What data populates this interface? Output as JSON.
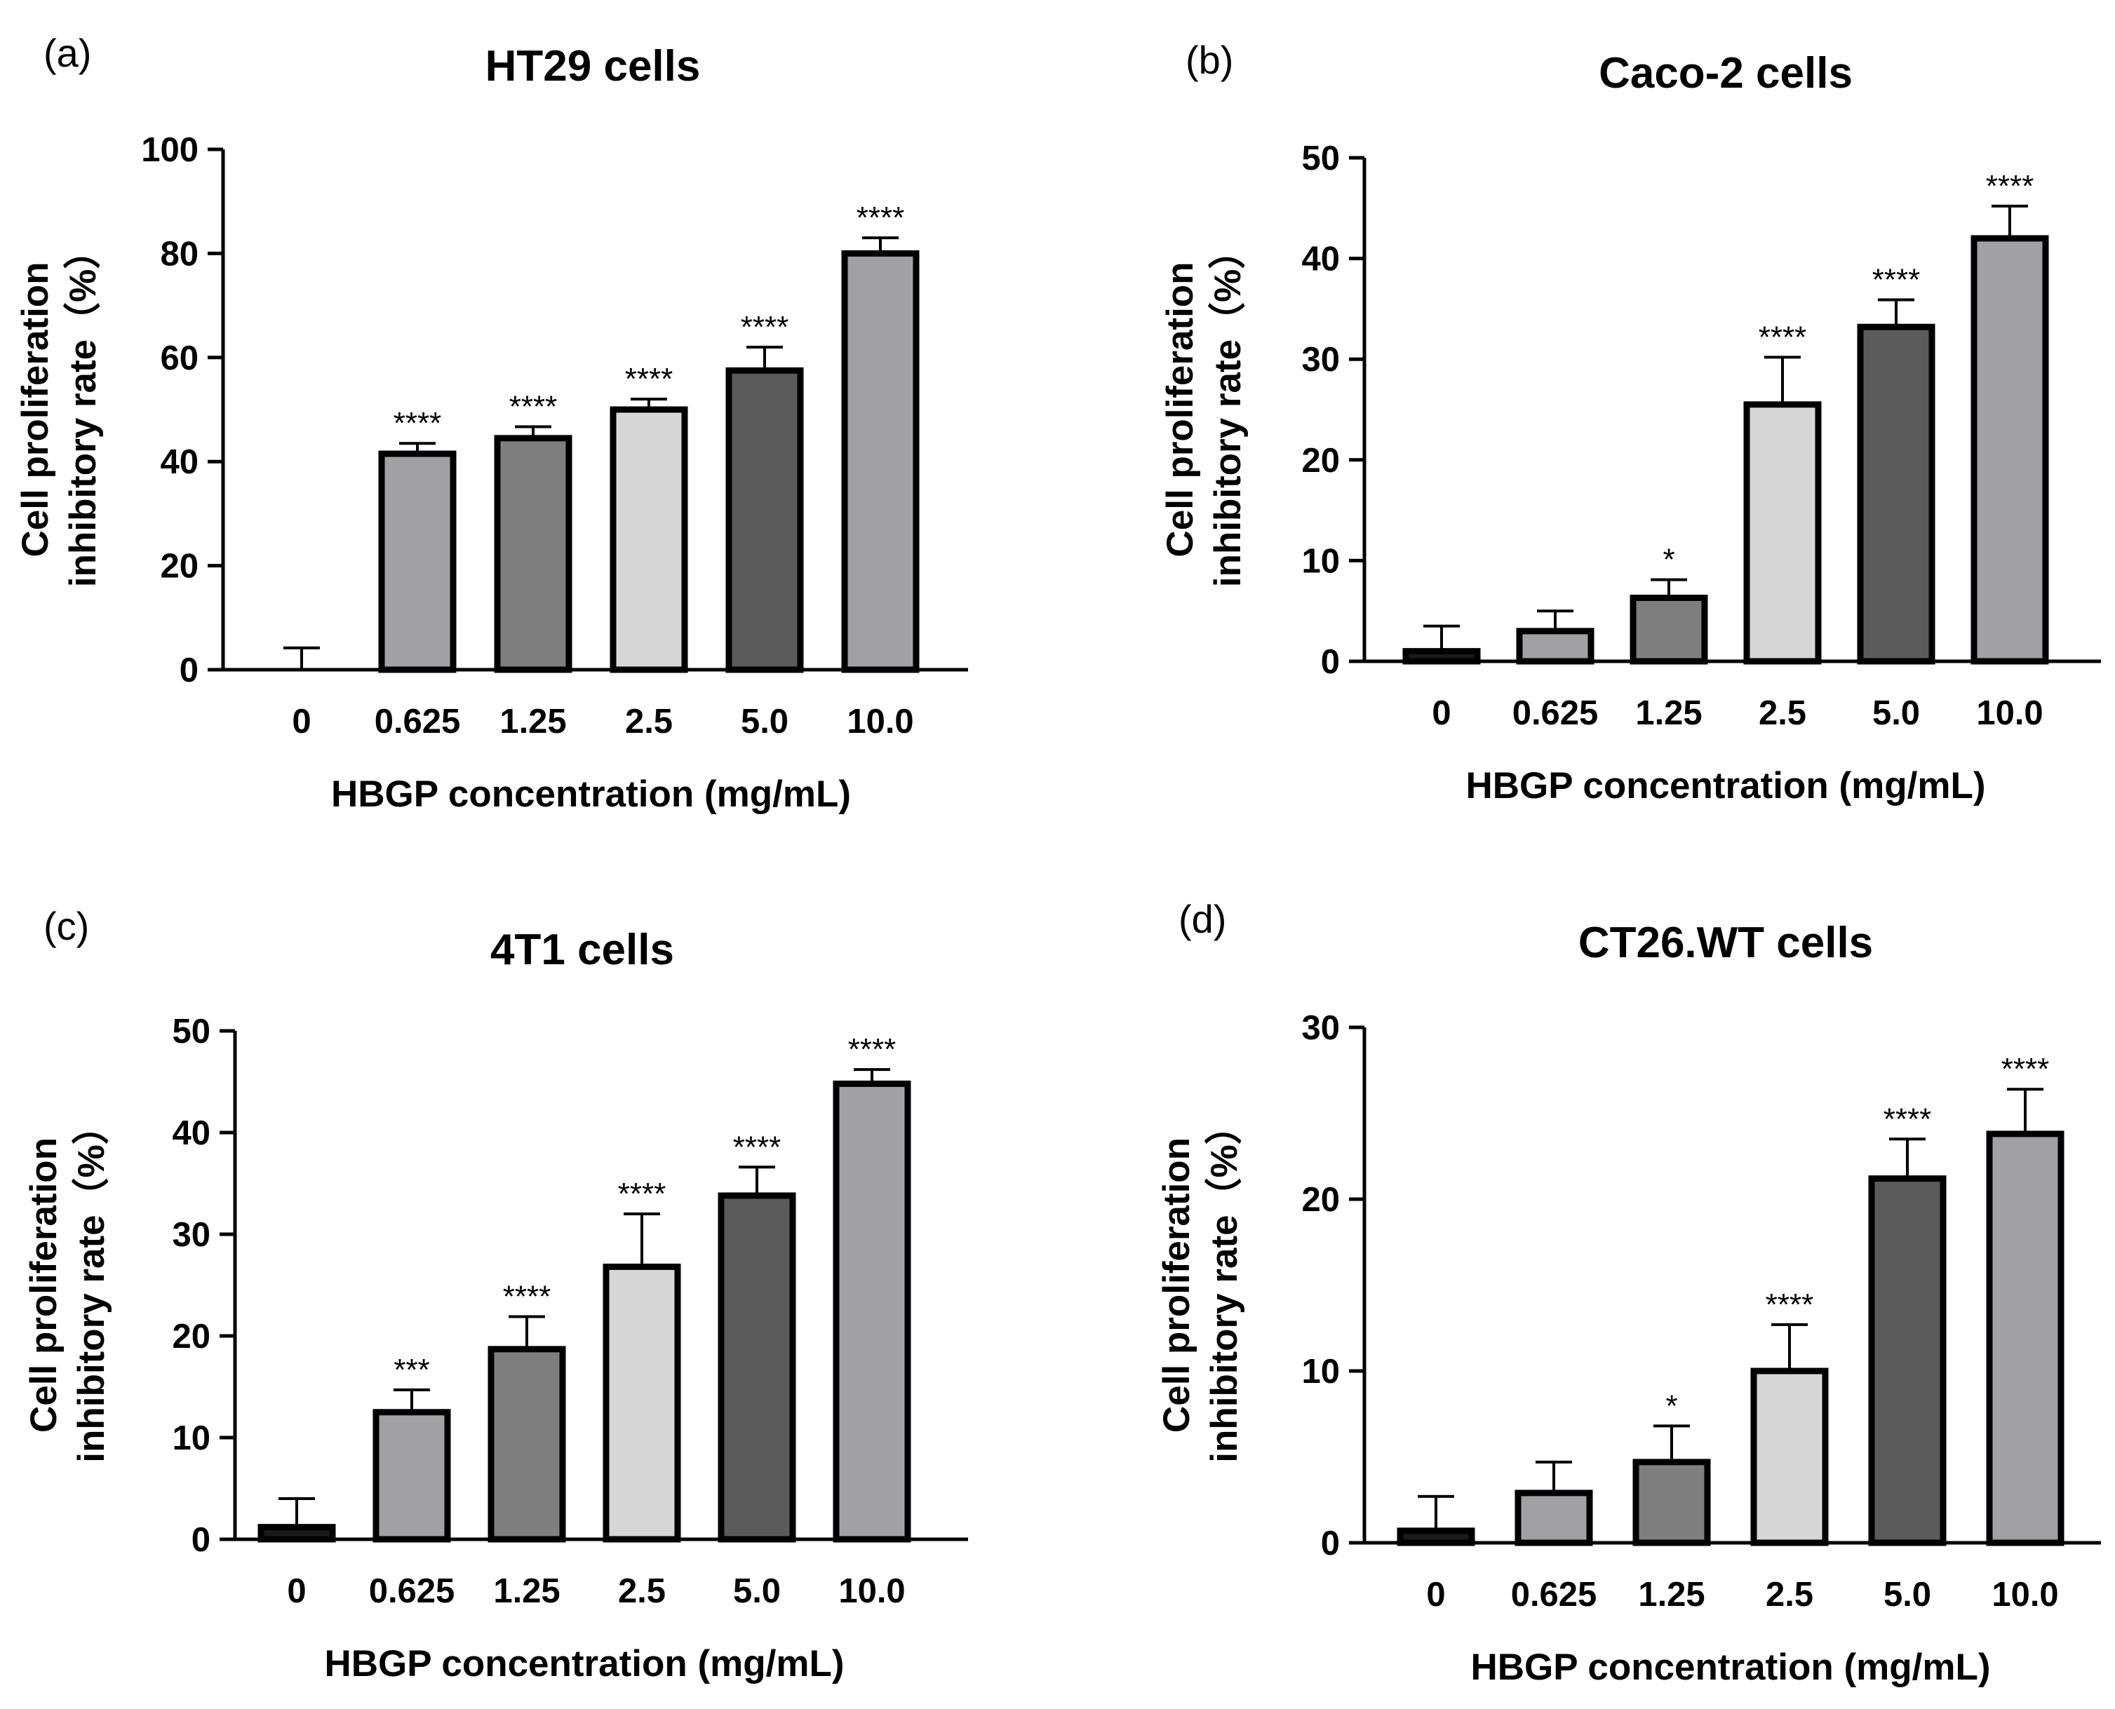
{
  "colors": {
    "bar_fill": "#a0a0a5",
    "bar_stroke": "#000000",
    "palette": [
      "#1a1a1a",
      "#a0a0a5",
      "#7f7f7f",
      "#d6d6d6",
      "#5b5b5b",
      "#a0a0a5"
    ]
  },
  "chart_data": [
    {
      "type": "bar",
      "panel": "(a)",
      "title": "HT29 cells",
      "xlabel": "HBGP concentration (mg/mL)",
      "ylabel": [
        "Cell proliferation",
        "inhibitory rate（%）"
      ],
      "categories": [
        "0",
        "0.625",
        "1.25",
        "2.5",
        "5.0",
        "10.0"
      ],
      "values": [
        0,
        41.5,
        44.5,
        50,
        57.5,
        80
      ],
      "errors": [
        4.2,
        2,
        2.2,
        2,
        4.5,
        3
      ],
      "significance": [
        "",
        "****",
        "****",
        "****",
        "****",
        "****"
      ],
      "ylim": [
        0,
        100
      ],
      "yticks": [
        0,
        20,
        40,
        60,
        80,
        100
      ],
      "grid": false,
      "legend": "none"
    },
    {
      "type": "bar",
      "panel": "(b)",
      "title": "Caco-2 cells",
      "xlabel": "HBGP concentration (mg/mL)",
      "ylabel": [
        "Cell proliferation",
        "inhibitory rate（%）"
      ],
      "categories": [
        "0",
        "0.625",
        "1.25",
        "2.5",
        "5.0",
        "10.0"
      ],
      "values": [
        1,
        3,
        6.3,
        25.5,
        33.2,
        42
      ],
      "errors": [
        2.5,
        2,
        1.8,
        4.7,
        2.7,
        3.2
      ],
      "significance": [
        "",
        "",
        "*",
        "****",
        "****",
        "****"
      ],
      "ylim": [
        0,
        50
      ],
      "yticks": [
        0,
        10,
        20,
        30,
        40,
        50
      ],
      "grid": false,
      "legend": "none"
    },
    {
      "type": "bar",
      "panel": "(c)",
      "title": "4T1 cells",
      "xlabel": "HBGP concentration (mg/mL)",
      "ylabel": [
        "Cell proliferation",
        "inhibitory rate（%）"
      ],
      "categories": [
        "0",
        "0.625",
        "1.25",
        "2.5",
        "5.0",
        "10.0"
      ],
      "values": [
        1.2,
        12.5,
        18.7,
        26.8,
        33.8,
        44.8
      ],
      "errors": [
        2.8,
        2.2,
        3.2,
        5.2,
        2.8,
        1.4
      ],
      "significance": [
        "",
        "***",
        "****",
        "****",
        "****",
        "****"
      ],
      "ylim": [
        0,
        50
      ],
      "yticks": [
        0,
        10,
        20,
        30,
        40,
        50
      ],
      "grid": false,
      "legend": "none"
    },
    {
      "type": "bar",
      "panel": "(d)",
      "title": "CT26.WT cells",
      "xlabel": "HBGP concentration (mg/mL)",
      "ylabel": [
        "Cell proliferation",
        "inhibitory rate（%）"
      ],
      "categories": [
        "0",
        "0.625",
        "1.25",
        "2.5",
        "5.0",
        "10.0"
      ],
      "values": [
        0.7,
        2.9,
        4.7,
        10,
        21.2,
        23.8
      ],
      "errors": [
        2,
        1.8,
        2.1,
        2.7,
        2.3,
        2.6
      ],
      "significance": [
        "",
        "",
        "*",
        "****",
        "****",
        "****"
      ],
      "ylim": [
        0,
        30
      ],
      "yticks": [
        0,
        10,
        20,
        30
      ],
      "grid": false,
      "legend": "none"
    }
  ]
}
